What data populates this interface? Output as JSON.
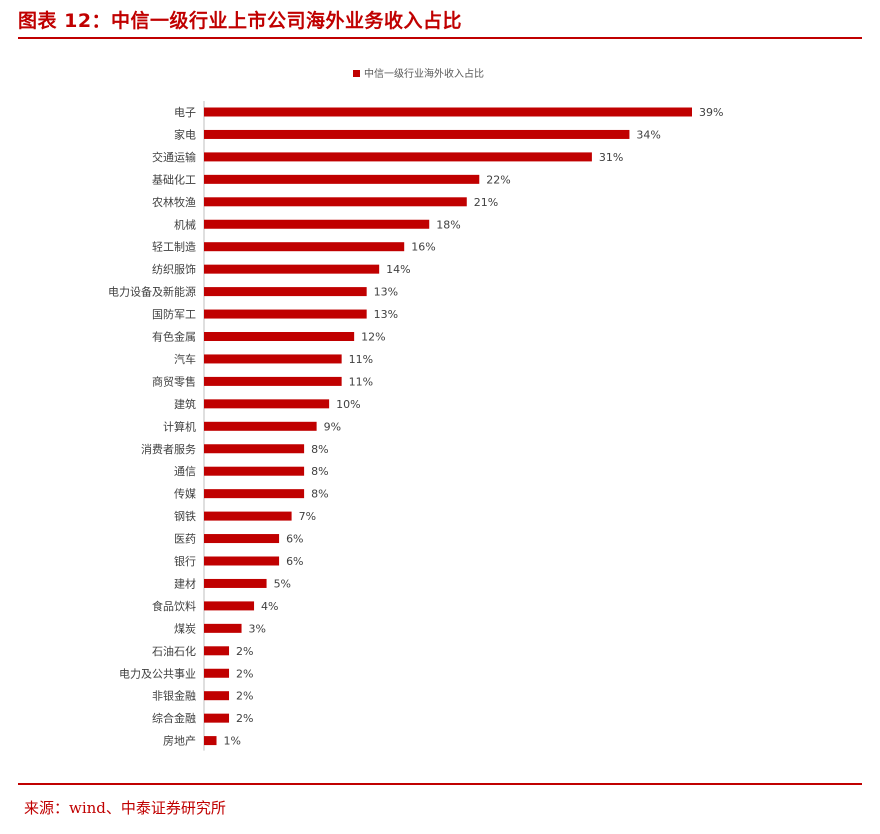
{
  "page": {
    "title": "图表 12：中信一级行业上市公司海外业务收入占比",
    "source": "来源：wind、中泰证券研究所"
  },
  "colors": {
    "accent": "#c00000",
    "bar": "#c00000"
  },
  "chart_data": {
    "type": "bar",
    "orientation": "horizontal",
    "legend": {
      "position": "top",
      "entries": [
        "中信一级行业海外收入占比"
      ]
    },
    "series": [
      {
        "name": "中信一级行业海外收入占比"
      }
    ],
    "categories": [
      "电子",
      "家电",
      "交通运输",
      "基础化工",
      "农林牧渔",
      "机械",
      "轻工制造",
      "纺织服饰",
      "电力设备及新能源",
      "国防军工",
      "有色金属",
      "汽车",
      "商贸零售",
      "建筑",
      "计算机",
      "消费者服务",
      "通信",
      "传媒",
      "钢铁",
      "医药",
      "银行",
      "建材",
      "食品饮料",
      "煤炭",
      "石油石化",
      "电力及公共事业",
      "非银金融",
      "综合金融",
      "房地产"
    ],
    "values": [
      39,
      34,
      31,
      22,
      21,
      18,
      16,
      14,
      13,
      13,
      12,
      11,
      11,
      10,
      9,
      8,
      8,
      8,
      7,
      6,
      6,
      5,
      4,
      3,
      2,
      2,
      2,
      2,
      1
    ],
    "value_labels": [
      "39%",
      "34%",
      "31%",
      "22%",
      "21%",
      "18%",
      "16%",
      "14%",
      "13%",
      "13%",
      "12%",
      "11%",
      "11%",
      "10%",
      "9%",
      "8%",
      "8%",
      "8%",
      "7%",
      "6%",
      "6%",
      "5%",
      "4%",
      "3%",
      "2%",
      "2%",
      "2%",
      "2%",
      "1%"
    ],
    "xlim": [
      0,
      40
    ],
    "unit": "%",
    "grid": false
  }
}
